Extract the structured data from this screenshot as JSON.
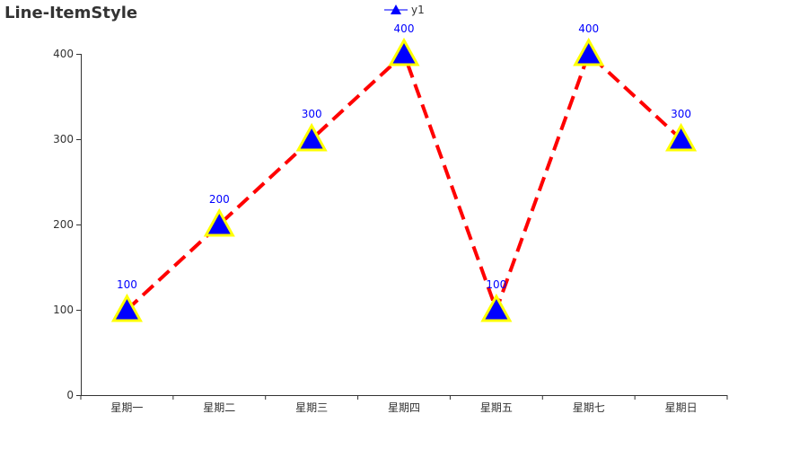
{
  "chart_data": {
    "type": "line",
    "title": "Line-ItemStyle",
    "categories": [
      "星期一",
      "星期二",
      "星期三",
      "星期四",
      "星期五",
      "星期七",
      "星期日"
    ],
    "series": [
      {
        "name": "y1",
        "values": [
          100,
          200,
          300,
          400,
          100,
          400,
          300
        ]
      }
    ],
    "ylim": [
      0,
      400
    ],
    "yticks": [
      0,
      100,
      200,
      300,
      400
    ],
    "grid": false,
    "legend_position": "top-center",
    "marker": "triangle",
    "show_data_labels": true,
    "colors": {
      "line": "#ff0000",
      "marker_fill": "#0000ff",
      "marker_border": "#ffff00",
      "label": "#0000ff",
      "legend_line": "#7777ff"
    },
    "line_style": "dashed"
  }
}
